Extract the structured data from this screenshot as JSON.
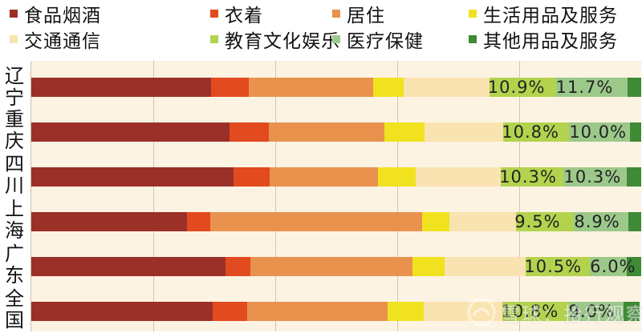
{
  "chart_data": {
    "type": "bar",
    "orientation": "horizontal",
    "stacked": true,
    "percent_stacked": true,
    "grid": true,
    "legend_position": "top",
    "categories": [
      "辽宁",
      "重庆",
      "四川",
      "上海",
      "广东",
      "全国"
    ],
    "series": [
      {
        "name": "食品烟酒",
        "color": "#9b3028",
        "values": [
          29.5,
          32.5,
          33.2,
          25.5,
          31.8,
          29.8
        ]
      },
      {
        "name": "衣着",
        "color": "#e24a1f",
        "values": [
          6.1,
          6.5,
          5.9,
          3.9,
          4.1,
          5.6
        ]
      },
      {
        "name": "居住",
        "color": "#e9924d",
        "values": [
          20.4,
          18.9,
          17.7,
          34.7,
          26.6,
          23.0
        ]
      },
      {
        "name": "生活用品及服务",
        "color": "#f0e21f",
        "values": [
          5.1,
          6.6,
          6.2,
          4.4,
          5.2,
          5.9
        ]
      },
      {
        "name": "交通通信",
        "color": "#f9e3b0",
        "values": [
          14.0,
          12.9,
          14.0,
          11.0,
          13.4,
          13.0
        ]
      },
      {
        "name": "教育文化娱乐",
        "color": "#b3d34e",
        "values": [
          10.9,
          10.8,
          10.3,
          9.5,
          10.5,
          10.8
        ]
      },
      {
        "name": "医疗保健",
        "color": "#9cc98a",
        "values": [
          11.7,
          10.0,
          10.3,
          8.9,
          6.0,
          9.0
        ]
      },
      {
        "name": "其他用品及服务",
        "color": "#3f8a35",
        "values": [
          2.3,
          1.8,
          2.4,
          2.1,
          2.4,
          2.6
        ]
      }
    ],
    "data_labels": [
      {
        "category": "辽宁",
        "edu": "10.9%",
        "med": "11.7%"
      },
      {
        "category": "重庆",
        "edu": "10.8%",
        "med": "10.0%"
      },
      {
        "category": "四川",
        "edu": "10.3%",
        "med": "10.3%"
      },
      {
        "category": "上海",
        "edu": "9.5%",
        "med": "8.9%"
      },
      {
        "category": "广东",
        "edu": "10.5%",
        "med": "6.0%"
      },
      {
        "category": "全国",
        "edu": "10.8%",
        "med": "9.0%"
      }
    ],
    "xlim": [
      0,
      100
    ]
  },
  "watermark": {
    "text": "雪球：拾行观察"
  }
}
